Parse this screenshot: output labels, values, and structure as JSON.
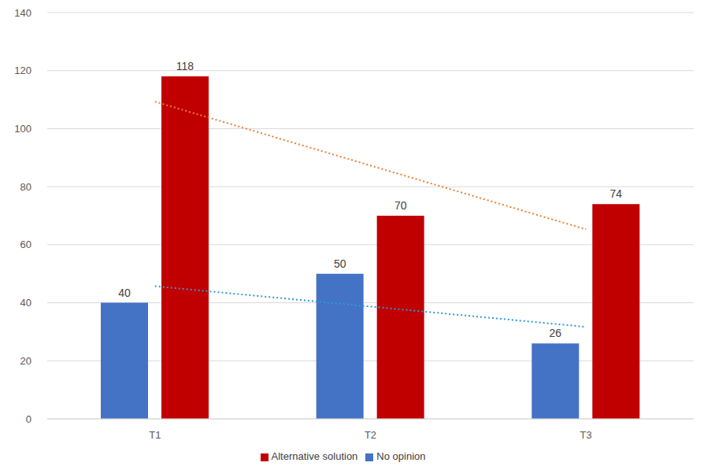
{
  "chart_data": {
    "type": "bar",
    "categories": [
      "T1",
      "T2",
      "T3"
    ],
    "series": [
      {
        "name": "No opinion",
        "color": "#4472c4",
        "values": [
          40,
          50,
          26
        ],
        "trend": [
          45.7,
          38.7,
          31.7
        ]
      },
      {
        "name": "Alternative solution",
        "color": "#c00000",
        "values": [
          118,
          70,
          74
        ],
        "trend": [
          109.3,
          87.3,
          65.3
        ]
      }
    ],
    "ylim": [
      0,
      140
    ],
    "yticks": [
      0,
      20,
      40,
      60,
      80,
      100,
      120,
      140
    ],
    "grid": true,
    "data_labels": true,
    "legend": "bottom"
  }
}
